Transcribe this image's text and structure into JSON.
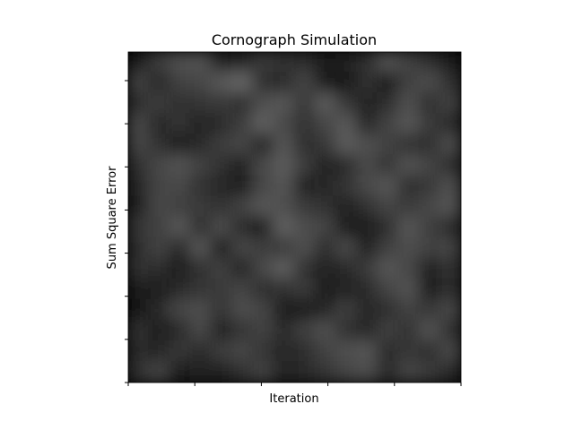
{
  "chart_data": {
    "type": "heatmap",
    "title": "Cornograph Simulation",
    "xlabel": "Iteration",
    "ylabel": "Sum Square Error",
    "colormap": "gray",
    "background_color": "#000000",
    "x_tick_count": 6,
    "y_tick_count": 8,
    "x_tick_labels": [],
    "y_tick_labels": [],
    "grid": false,
    "legend": "none",
    "colorbar": false,
    "values": [
      [
        0.1,
        0.24,
        0.31,
        0.32,
        0.14,
        0.15,
        0.23,
        0.2,
        0.18,
        0.11,
        0.14,
        0.18,
        0.32,
        0.26,
        0.19,
        0.12
      ],
      [
        0.26,
        0.15,
        0.26,
        0.28,
        0.35,
        0.4,
        0.18,
        0.16,
        0.27,
        0.1,
        0.08,
        0.2,
        0.12,
        0.25,
        0.3,
        0.2
      ],
      [
        0.18,
        0.24,
        0.18,
        0.21,
        0.23,
        0.18,
        0.31,
        0.34,
        0.22,
        0.36,
        0.22,
        0.14,
        0.18,
        0.31,
        0.18,
        0.26
      ],
      [
        0.29,
        0.15,
        0.21,
        0.14,
        0.16,
        0.24,
        0.38,
        0.29,
        0.19,
        0.28,
        0.35,
        0.15,
        0.26,
        0.34,
        0.23,
        0.16
      ],
      [
        0.28,
        0.2,
        0.1,
        0.17,
        0.24,
        0.28,
        0.13,
        0.33,
        0.18,
        0.22,
        0.36,
        0.31,
        0.26,
        0.2,
        0.18,
        0.3
      ],
      [
        0.2,
        0.28,
        0.32,
        0.26,
        0.19,
        0.14,
        0.29,
        0.36,
        0.24,
        0.13,
        0.17,
        0.29,
        0.21,
        0.32,
        0.27,
        0.18
      ],
      [
        0.15,
        0.27,
        0.29,
        0.2,
        0.15,
        0.12,
        0.28,
        0.33,
        0.13,
        0.15,
        0.21,
        0.29,
        0.34,
        0.18,
        0.22,
        0.31
      ],
      [
        0.13,
        0.28,
        0.25,
        0.23,
        0.19,
        0.26,
        0.34,
        0.31,
        0.23,
        0.19,
        0.14,
        0.2,
        0.27,
        0.23,
        0.28,
        0.33
      ],
      [
        0.22,
        0.25,
        0.35,
        0.18,
        0.3,
        0.17,
        0.12,
        0.38,
        0.3,
        0.27,
        0.12,
        0.11,
        0.18,
        0.34,
        0.25,
        0.17
      ],
      [
        0.18,
        0.26,
        0.16,
        0.34,
        0.11,
        0.28,
        0.24,
        0.23,
        0.31,
        0.18,
        0.29,
        0.13,
        0.25,
        0.3,
        0.26,
        0.27
      ],
      [
        0.2,
        0.18,
        0.1,
        0.19,
        0.25,
        0.14,
        0.29,
        0.37,
        0.2,
        0.14,
        0.16,
        0.23,
        0.34,
        0.28,
        0.13,
        0.2
      ],
      [
        0.1,
        0.12,
        0.16,
        0.21,
        0.23,
        0.27,
        0.18,
        0.19,
        0.23,
        0.1,
        0.13,
        0.17,
        0.27,
        0.32,
        0.12,
        0.18
      ],
      [
        0.08,
        0.16,
        0.28,
        0.3,
        0.21,
        0.3,
        0.27,
        0.11,
        0.1,
        0.15,
        0.25,
        0.15,
        0.18,
        0.26,
        0.22,
        0.28
      ],
      [
        0.19,
        0.1,
        0.17,
        0.29,
        0.14,
        0.21,
        0.26,
        0.17,
        0.25,
        0.31,
        0.2,
        0.15,
        0.25,
        0.19,
        0.32,
        0.2
      ],
      [
        0.17,
        0.15,
        0.22,
        0.17,
        0.24,
        0.28,
        0.21,
        0.15,
        0.18,
        0.26,
        0.31,
        0.33,
        0.16,
        0.22,
        0.18,
        0.29
      ],
      [
        0.19,
        0.27,
        0.1,
        0.13,
        0.14,
        0.2,
        0.26,
        0.13,
        0.17,
        0.21,
        0.27,
        0.3,
        0.17,
        0.27,
        0.23,
        0.16
      ]
    ]
  }
}
